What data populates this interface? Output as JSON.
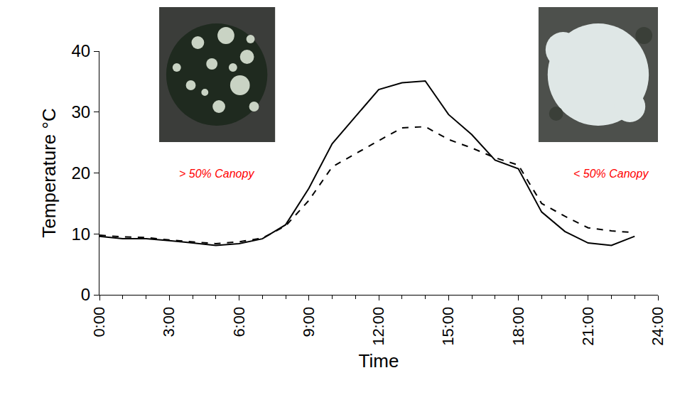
{
  "chart_data": {
    "type": "line",
    "x_label": "Time",
    "y_label": "Temperature °C",
    "annotations": [
      "> 50% Canopy",
      "< 50% Canopy"
    ],
    "x": [
      0,
      1,
      2,
      3,
      4,
      5,
      6,
      7,
      8,
      9,
      10,
      11,
      12,
      13,
      14,
      15,
      16,
      17,
      18,
      19,
      20,
      21,
      22,
      23
    ],
    "series": [
      {
        "color": "#000000",
        "line_style": "solid",
        "values": [
          9.6,
          9.2,
          9.2,
          8.9,
          8.5,
          8.1,
          8.4,
          9.2,
          11.5,
          17.5,
          24.8,
          29.3,
          33.7,
          34.8,
          35.1,
          29.6,
          26.3,
          22.1,
          20.7,
          13.6,
          10.4,
          8.5,
          8.1,
          9.6
        ]
      },
      {
        "color": "#000000",
        "line_style": "dashed",
        "values": [
          9.8,
          9.5,
          9.4,
          9.0,
          8.7,
          8.4,
          8.7,
          9.3,
          11.3,
          15.5,
          21.0,
          23.2,
          25.3,
          27.4,
          27.6,
          25.5,
          24.1,
          22.5,
          21.3,
          15.0,
          12.9,
          11.0,
          10.5,
          10.2
        ]
      }
    ],
    "xlim": [
      0,
      24
    ],
    "xticks": [
      {
        "value": 0,
        "label": "0:00"
      },
      {
        "value": 3,
        "label": "3:00"
      },
      {
        "value": 6,
        "label": "6:00"
      },
      {
        "value": 9,
        "label": "9:00"
      },
      {
        "value": 12,
        "label": "12:00"
      },
      {
        "value": 15,
        "label": "15:00"
      },
      {
        "value": 18,
        "label": "18:00"
      },
      {
        "value": 21,
        "label": "21:00"
      },
      {
        "value": 24,
        "label": "24:00"
      }
    ],
    "ylim": [
      0,
      40
    ],
    "yticks": [
      0,
      10,
      20,
      30,
      40
    ],
    "grid": false
  }
}
